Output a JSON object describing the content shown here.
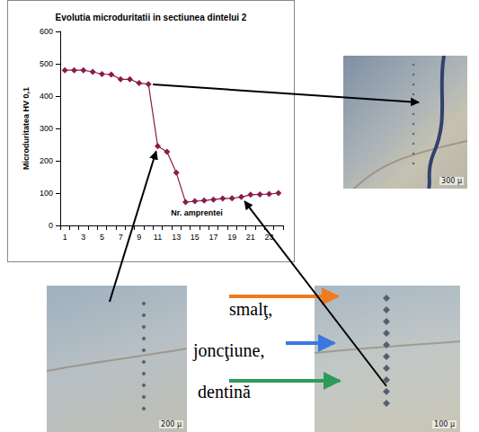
{
  "chart_data": {
    "type": "line",
    "title": "Evolutia microduritatii in sectiunea dintelui 2",
    "y_label": "Microduritatea HV 0,1",
    "x_label": "Nr. amprentei",
    "categories": [
      1,
      null,
      3,
      null,
      5,
      null,
      7,
      null,
      9,
      null,
      11,
      null,
      13,
      null,
      15,
      null,
      17,
      null,
      19,
      null,
      21,
      null,
      23,
      null
    ],
    "values": [
      480,
      480,
      480,
      475,
      468,
      467,
      452,
      452,
      440,
      437,
      245,
      228,
      163,
      72,
      75,
      77,
      80,
      83,
      84,
      88,
      95,
      96,
      97,
      100
    ],
    "color": "#8b1a4b",
    "marker": "diamond",
    "line_style": "solid",
    "ylim": [
      0,
      600
    ],
    "yticks": [
      0,
      100,
      200,
      300,
      400,
      500,
      600
    ],
    "grid": false
  },
  "annotations": [
    {
      "text": "smalţ,",
      "color": "#f07a1e"
    },
    {
      "text": "joncţiune,",
      "color": "#3a78e0"
    },
    {
      "text": "dentină",
      "color": "#2e9a5c"
    }
  ],
  "photos": [
    {
      "scale": "300 μ"
    },
    {
      "scale": "200 μ"
    },
    {
      "scale": "100 μ"
    }
  ]
}
